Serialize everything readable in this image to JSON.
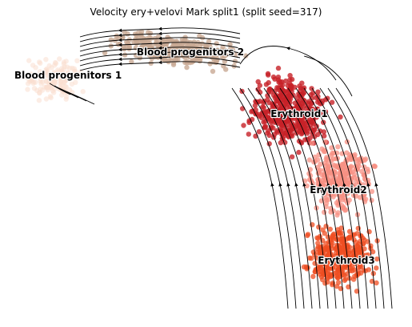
{
  "chart_data": {
    "type": "scatter",
    "title": "Velocity ery+velovi Mark split1 (split seed=317)",
    "xlabel": "",
    "ylabel": "",
    "grid": false,
    "axes_visible": false,
    "overlay": "velocity-streamlines",
    "clusters": [
      {
        "name": "Blood progenitors 1",
        "color": "#f9decf"
      },
      {
        "name": "Blood progenitors 2",
        "color": "#c8a994"
      },
      {
        "name": "Erythroid1",
        "color": "#c72228"
      },
      {
        "name": "Erythroid2",
        "color": "#f79083"
      },
      {
        "name": "Erythroid3",
        "color": "#ef4e22"
      }
    ]
  }
}
